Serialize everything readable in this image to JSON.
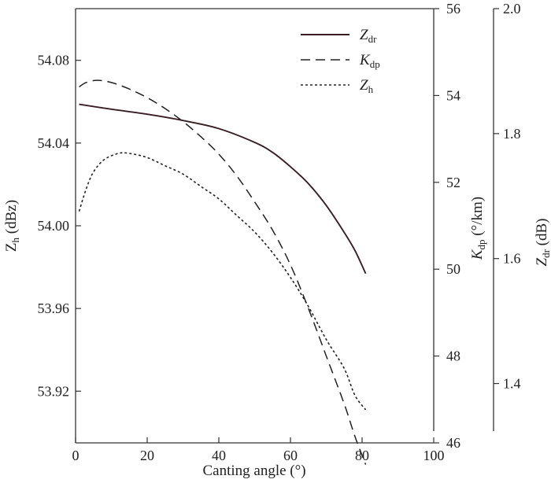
{
  "chart_data": {
    "type": "line",
    "title": "",
    "xlabel": "Canting angle (°)",
    "xlim": [
      0,
      100
    ],
    "xticks": [
      0,
      20,
      40,
      60,
      80,
      100
    ],
    "grid": false,
    "legend_position": "top-right",
    "axes": {
      "left": {
        "label_main": "Z",
        "label_sub": "h",
        "label_unit": " (dBz)",
        "lim": [
          53.895,
          54.105
        ],
        "ticks": [
          53.92,
          53.96,
          54.0,
          54.04,
          54.08
        ],
        "tick_labels": [
          "53.92",
          "53.96",
          "54.00",
          "54.04",
          "54.08"
        ]
      },
      "right1": {
        "label_main": "K",
        "label_sub": "dp",
        "label_unit": " (°/km)",
        "lim": [
          46,
          56
        ],
        "ticks": [
          46,
          48,
          50,
          52,
          54,
          56
        ],
        "tick_labels": [
          "46",
          "48",
          "50",
          "52",
          "54",
          "56"
        ]
      },
      "right2": {
        "label_main": "Z",
        "label_sub": "dr",
        "label_unit": " (dB)",
        "lim": [
          1.305,
          2.0
        ],
        "ticks": [
          1.4,
          1.6,
          1.8,
          2.0
        ],
        "tick_labels": [
          "1.4",
          "1.6",
          "1.8",
          "2.0"
        ]
      }
    },
    "series": [
      {
        "name": "Zdr",
        "legend_main": "Z",
        "legend_sub": "dr",
        "axis": "right2",
        "style": "solid",
        "x": [
          1,
          10,
          20,
          30,
          40,
          50,
          55,
          60,
          65,
          70,
          75,
          78,
          81
        ],
        "y": [
          1.847,
          1.839,
          1.831,
          1.821,
          1.808,
          1.786,
          1.77,
          1.747,
          1.72,
          1.685,
          1.642,
          1.613,
          1.576
        ]
      },
      {
        "name": "Kdp",
        "legend_main": "K",
        "legend_sub": "dp",
        "axis": "right1",
        "style": "dashed",
        "x": [
          1,
          3,
          6,
          10,
          15,
          20,
          25,
          30,
          35,
          40,
          45,
          50,
          55,
          60,
          65,
          70,
          75,
          78,
          81
        ],
        "y": [
          54.2,
          54.3,
          54.35,
          54.3,
          54.15,
          53.95,
          53.7,
          53.4,
          53.05,
          52.65,
          52.15,
          51.55,
          50.9,
          50.1,
          49.1,
          48.0,
          46.9,
          46.15,
          45.5
        ]
      },
      {
        "name": "Zh",
        "legend_main": "Z",
        "legend_sub": "h",
        "axis": "left",
        "style": "dotted",
        "x": [
          1,
          3,
          5,
          8,
          12,
          15,
          20,
          25,
          30,
          35,
          40,
          45,
          50,
          55,
          60,
          65,
          70,
          75,
          78,
          81
        ],
        "y": [
          54.007,
          54.018,
          54.026,
          54.032,
          54.035,
          54.035,
          54.033,
          54.029,
          54.025,
          54.019,
          54.013,
          54.005,
          53.997,
          53.987,
          53.975,
          53.961,
          53.945,
          53.931,
          53.918,
          53.911
        ]
      }
    ]
  }
}
